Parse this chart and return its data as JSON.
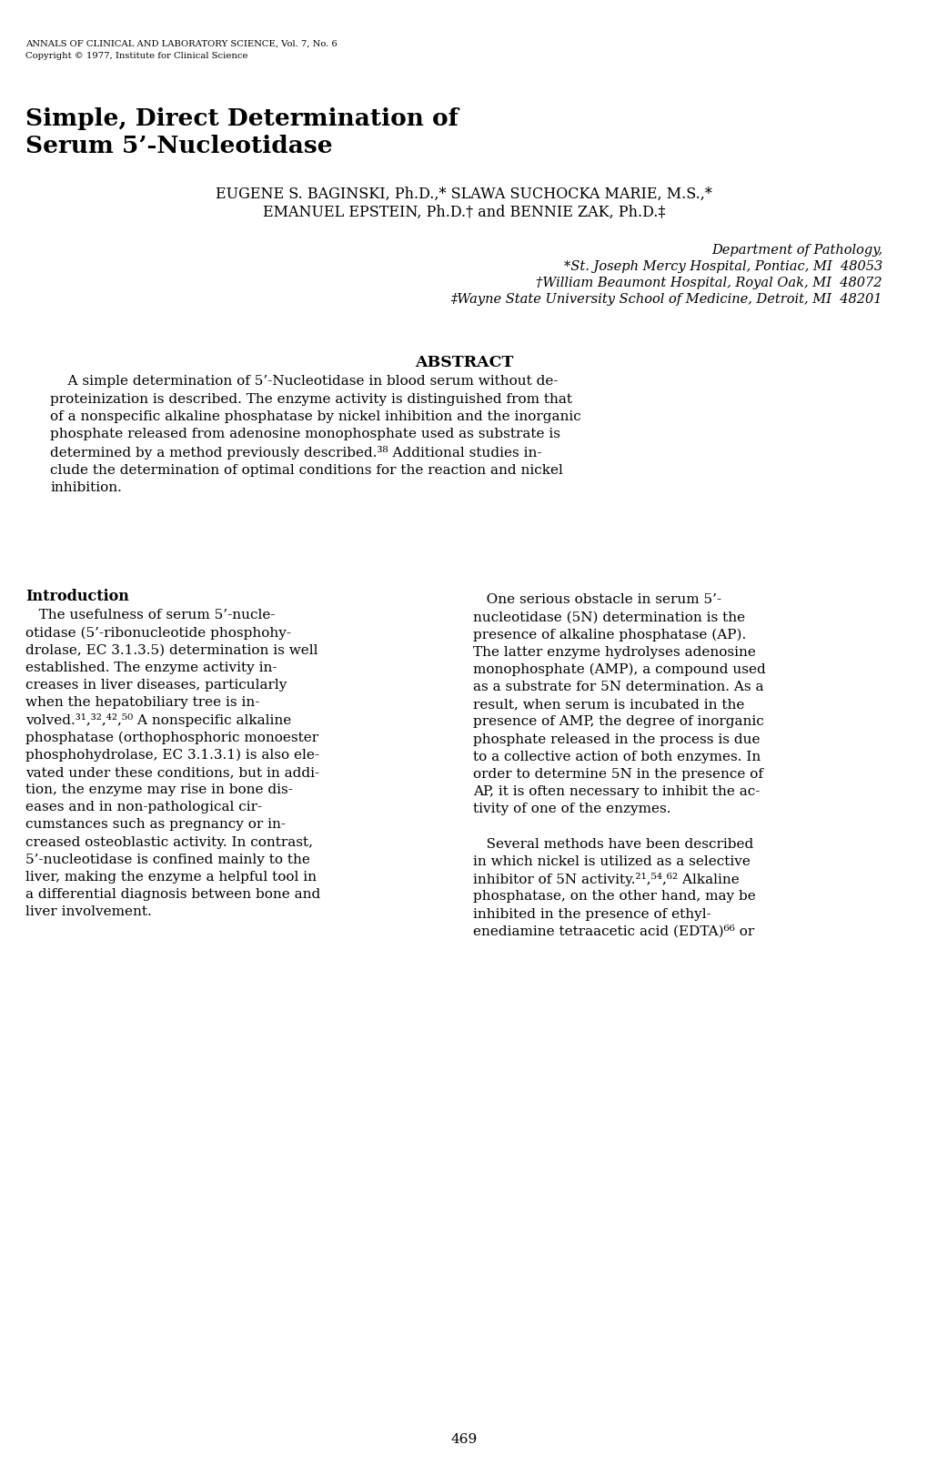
{
  "background_color": "#ffffff",
  "text_color": "#000000",
  "journal_line1": "ANNALS OF CLINICAL AND LABORATORY SCIENCE, Vol. 7, No. 6",
  "journal_line2": "Copyright © 1977, Institute for Clinical Science",
  "title_line1": "Simple, Direct Determination of",
  "title_line2": "Serum 5’-Nucleotidase",
  "authors_line1": "EUGENE S. BAGINSKI, Ph.D.,* SLAWA SUCHOCKA MARIE, M.S.,*",
  "authors_line2": "EMANUEL EPSTEIN, Ph.D.† and BENNIE ZAK, Ph.D.‡",
  "affil1": "Department of Pathology,",
  "affil2": "*St. Joseph Mercy Hospital, Pontiac, MI  48053",
  "affil3": "†William Beaumont Hospital, Royal Oak, MI  48072",
  "affil4": "‡Wayne State University School of Medicine, Detroit, MI  48201",
  "abstract_heading": "ABSTRACT",
  "abstract_lines": [
    "    A simple determination of 5’-Nucleotidase in blood serum without de-",
    "proteinization is described. The enzyme activity is distinguished from that",
    "of a nonspecific alkaline phosphatase by nickel inhibition and the inorganic",
    "phosphate released from adenosine monophosphate used as substrate is",
    "determined by a method previously described.³⁸ Additional studies in-",
    "clude the determination of optimal conditions for the reaction and nickel",
    "inhibition."
  ],
  "intro_heading": "Introduction",
  "intro_left_lines": [
    "   The usefulness of serum 5’-nucle-",
    "otidase (5’-ribonucleotide phosphohy-",
    "drolase, EC 3.1.3.5) determination is well",
    "established. The enzyme activity in-",
    "creases in liver diseases, particularly",
    "when the hepatobiliary tree is in-",
    "volved.³¹,³²,⁴²,⁵⁰ A nonspecific alkaline",
    "phosphatase (orthophosphoric monoester",
    "phosphohydrolase, EC 3.1.3.1) is also ele-",
    "vated under these conditions, but in addi-",
    "tion, the enzyme may rise in bone dis-",
    "eases and in non-pathological cir-",
    "cumstances such as pregnancy or in-",
    "creased osteoblastic activity. In contrast,",
    "5’-nucleotidase is confined mainly to the",
    "liver, making the enzyme a helpful tool in",
    "a differential diagnosis between bone and",
    "liver involvement."
  ],
  "intro_right_lines": [
    "   One serious obstacle in serum 5’-",
    "nucleotidase (5N) determination is the",
    "presence of alkaline phosphatase (AP).",
    "The latter enzyme hydrolyses adenosine",
    "monophosphate (AMP), a compound used",
    "as a substrate for 5N determination. As a",
    "result, when serum is incubated in the",
    "presence of AMP, the degree of inorganic",
    "phosphate released in the process is due",
    "to a collective action of both enzymes. In",
    "order to determine 5N in the presence of",
    "AP, it is often necessary to inhibit the ac-",
    "tivity of one of the enzymes.",
    "",
    "   Several methods have been described",
    "in which nickel is utilized as a selective",
    "inhibitor of 5N activity.²¹,⁵⁴,⁶² Alkaline",
    "phosphatase, on the other hand, may be",
    "inhibited in the presence of ethyl-",
    "enediamine tetraacetic acid (EDTA)⁶⁶ or"
  ],
  "page_number": "469"
}
